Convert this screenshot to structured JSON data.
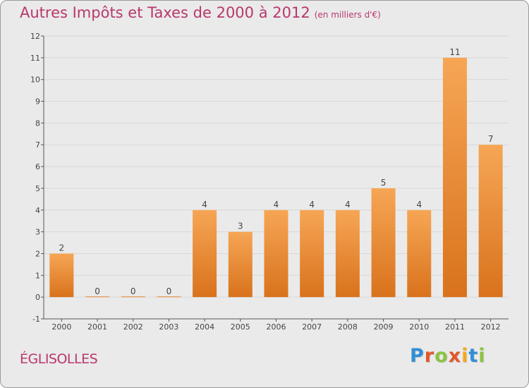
{
  "title": "Autres Impôts et Taxes de 2000 à 2012",
  "subtitle": "(en milliers d'€)",
  "commune": "ÉGLISOLLES",
  "logo": {
    "text": "Proxiti",
    "letter_colors": [
      "#2f8fd6",
      "#e4562e",
      "#8bc43f",
      "#e4562e",
      "#f2a81d",
      "#2f8fd6",
      "#8bc43f"
    ]
  },
  "colors": {
    "title": "#b8376d",
    "bar_top": "#f6a655",
    "bar_bottom": "#d9721c",
    "background": "#eaeaea",
    "grid": "#d8d8d8"
  },
  "chart_data": {
    "type": "bar",
    "categories": [
      "2000",
      "2001",
      "2002",
      "2003",
      "2004",
      "2005",
      "2006",
      "2007",
      "2008",
      "2009",
      "2010",
      "2011",
      "2012"
    ],
    "values": [
      2,
      0,
      0,
      0,
      4,
      3,
      4,
      4,
      4,
      5,
      4,
      11,
      7
    ],
    "data_labels": [
      "2",
      "0",
      "0",
      "0",
      "4",
      "3",
      "4",
      "4",
      "4",
      "5",
      "4",
      "11",
      "7"
    ],
    "y_ticks": [
      "-1",
      "0",
      "1",
      "2",
      "3",
      "4",
      "5",
      "6",
      "7",
      "8",
      "9",
      "10",
      "11",
      "12"
    ],
    "ylim": [
      -1,
      12
    ],
    "grid": true,
    "title": "Autres Impôts et Taxes de 2000 à 2012",
    "xlabel": "",
    "ylabel": ""
  }
}
